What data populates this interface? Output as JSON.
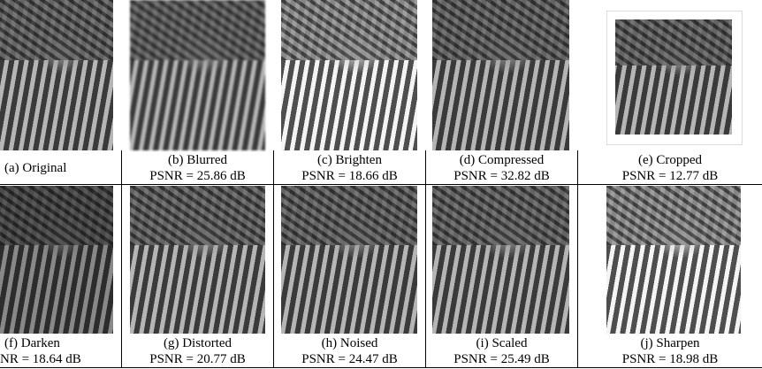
{
  "figure": {
    "rows": [
      [
        {
          "label": "(a) Original"
        },
        {
          "label": "(b) Blurred",
          "psnr": "PSNR = 25.86 dB"
        },
        {
          "label": "(c) Brighten",
          "psnr": "PSNR = 18.66 dB"
        },
        {
          "label": "(d) Compressed",
          "psnr": "PSNR = 32.82 dB"
        },
        {
          "label": "(e) Cropped",
          "psnr": "PSNR = 12.77 dB"
        }
      ],
      [
        {
          "label": "(f) Darken",
          "psnr": "NR = 18.64 dB"
        },
        {
          "label": "(g) Distorted",
          "psnr": "PSNR = 20.77 dB"
        },
        {
          "label": "(h) Noised",
          "psnr": "PSNR = 24.47 dB"
        },
        {
          "label": "(i) Scaled",
          "psnr": "PSNR = 25.49 dB"
        },
        {
          "label": "(j) Sharpen",
          "psnr": "PSNR = 18.98 dB"
        }
      ]
    ]
  }
}
